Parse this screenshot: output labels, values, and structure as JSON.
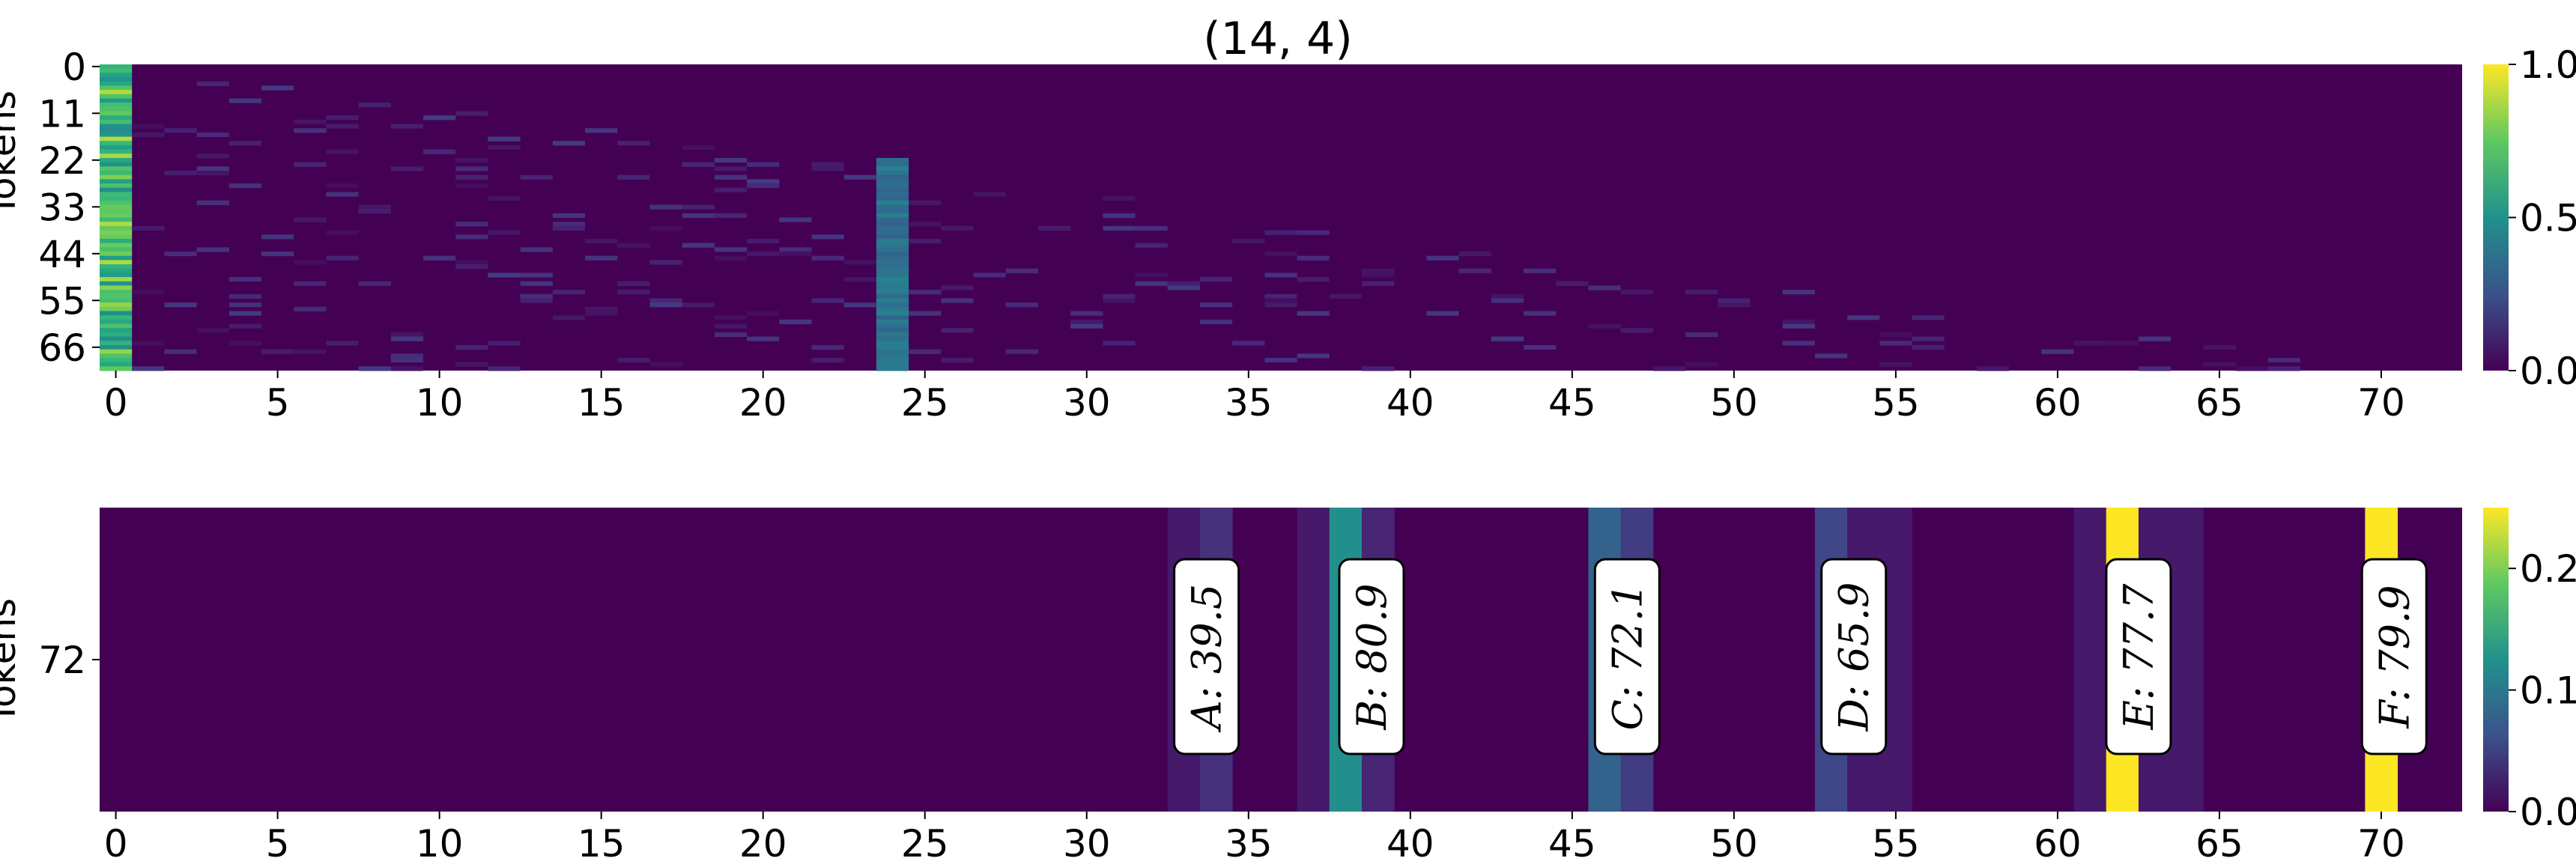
{
  "chart_data": [
    {
      "type": "heatmap",
      "title": "(14, 4)",
      "ylabel": "Tokens",
      "xlabel": "",
      "x_ticks": [
        0,
        5,
        10,
        15,
        20,
        25,
        30,
        35,
        40,
        45,
        50,
        55,
        60,
        65,
        70
      ],
      "y_ticks": [
        0,
        11,
        22,
        33,
        44,
        55,
        66
      ],
      "xlim": [
        0,
        73
      ],
      "ylim": [
        0,
        71
      ],
      "colorbar_ticks": [
        "0.0",
        "0.5",
        "1.0"
      ],
      "colorbar_range": [
        0,
        1
      ],
      "colormap": "viridis",
      "bright_columns": [
        {
          "column": 0,
          "value_range": [
            0.55,
            0.95
          ]
        },
        {
          "column": 24,
          "value_range": [
            0.35,
            0.5
          ],
          "rows": [
            22,
            71
          ]
        }
      ]
    },
    {
      "type": "heatmap",
      "ylabel": "Tokens",
      "xlabel": "",
      "y_ticks": [
        72
      ],
      "x_ticks": [
        0,
        5,
        10,
        15,
        20,
        25,
        30,
        35,
        40,
        45,
        50,
        55,
        60,
        65,
        70
      ],
      "xlim": [
        0,
        73
      ],
      "colorbar_ticks": [
        "0.0",
        "0.1",
        "0.2"
      ],
      "colorbar_range": [
        0,
        0.25
      ],
      "colormap": "viridis",
      "cells": [
        {
          "x": 33,
          "value": 0.02
        },
        {
          "x": 34,
          "value": 0.04
        },
        {
          "x": 37,
          "value": 0.02
        },
        {
          "x": 38,
          "value": 0.14
        },
        {
          "x": 39,
          "value": 0.03
        },
        {
          "x": 46,
          "value": 0.09
        },
        {
          "x": 47,
          "value": 0.05
        },
        {
          "x": 53,
          "value": 0.06
        },
        {
          "x": 54,
          "value": 0.02
        },
        {
          "x": 55,
          "value": 0.02
        },
        {
          "x": 61,
          "value": 0.02
        },
        {
          "x": 62,
          "value": 0.25
        },
        {
          "x": 63,
          "value": 0.02
        },
        {
          "x": 64,
          "value": 0.02
        },
        {
          "x": 70,
          "value": 0.25
        }
      ],
      "annotations": [
        {
          "text": "A: 39.5",
          "x": 33.7
        },
        {
          "text": "B: 80.9",
          "x": 38.8
        },
        {
          "text": "C: 72.1",
          "x": 46.7
        },
        {
          "text": "D: 65.9",
          "x": 53.7
        },
        {
          "text": "E: 77.7",
          "x": 62.5
        },
        {
          "text": "F: 79.9",
          "x": 70.4
        }
      ]
    }
  ]
}
